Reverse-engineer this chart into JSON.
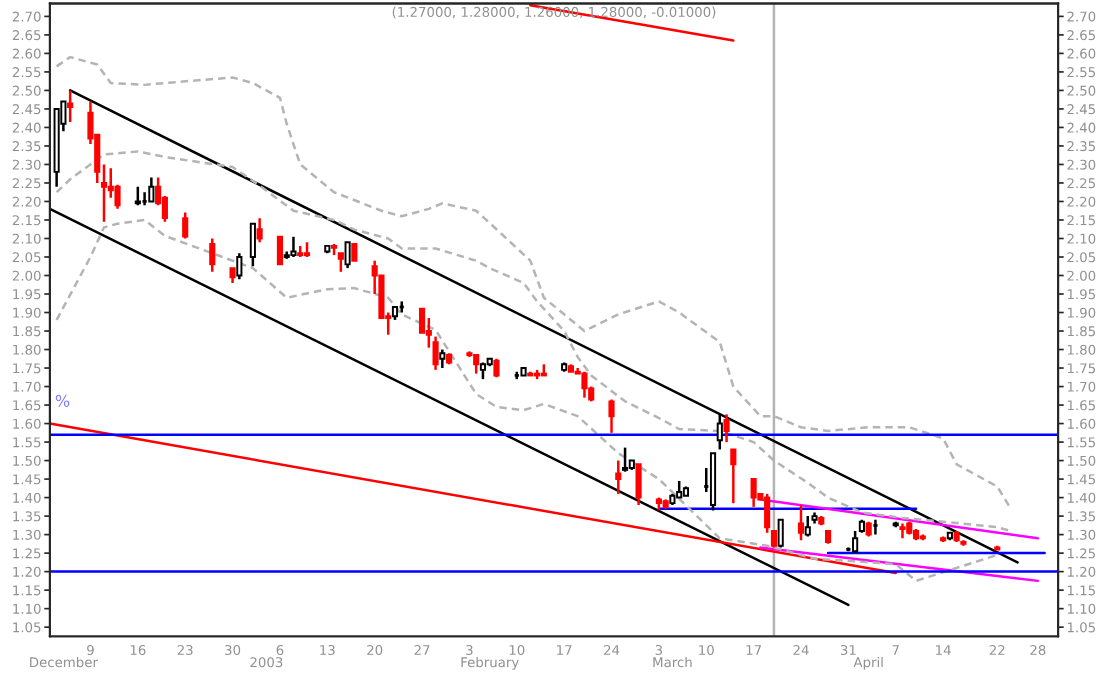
{
  "chart_data": {
    "type": "candlestick",
    "title": "(1.27000, 1.28000, 1.26000, 1.28000, -0.01000)",
    "x": [
      "2002-12-04",
      "2002-12-05",
      "2002-12-06",
      "2002-12-09",
      "2002-12-10",
      "2002-12-11",
      "2002-12-12",
      "2002-12-13",
      "2002-12-16",
      "2002-12-17",
      "2002-12-18",
      "2002-12-19",
      "2002-12-20",
      "2002-12-23",
      "2002-12-27",
      "2002-12-30",
      "2002-12-31",
      "2003-01-02",
      "2003-01-03",
      "2003-01-06",
      "2003-01-07",
      "2003-01-08",
      "2003-01-09",
      "2003-01-10",
      "2003-01-13",
      "2003-01-14",
      "2003-01-15",
      "2003-01-16",
      "2003-01-17",
      "2003-01-20",
      "2003-01-21",
      "2003-01-22",
      "2003-01-23",
      "2003-01-24",
      "2003-01-27",
      "2003-01-28",
      "2003-01-29",
      "2003-01-30",
      "2003-01-31",
      "2003-02-03",
      "2003-02-04",
      "2003-02-05",
      "2003-02-06",
      "2003-02-07",
      "2003-02-10",
      "2003-02-11",
      "2003-02-12",
      "2003-02-13",
      "2003-02-14",
      "2003-02-17",
      "2003-02-18",
      "2003-02-19",
      "2003-02-20",
      "2003-02-21",
      "2003-02-24",
      "2003-02-25",
      "2003-02-26",
      "2003-02-27",
      "2003-02-28",
      "2003-03-03",
      "2003-03-04",
      "2003-03-05",
      "2003-03-06",
      "2003-03-07",
      "2003-03-10",
      "2003-03-11",
      "2003-03-12",
      "2003-03-13",
      "2003-03-14",
      "2003-03-17",
      "2003-03-18",
      "2003-03-19",
      "2003-03-20",
      "2003-03-21",
      "2003-03-24",
      "2003-03-25",
      "2003-03-26",
      "2003-03-27",
      "2003-03-28",
      "2003-03-31",
      "2003-04-01",
      "2003-04-02",
      "2003-04-03",
      "2003-04-04",
      "2003-04-07",
      "2003-04-08",
      "2003-04-09",
      "2003-04-10",
      "2003-04-11",
      "2003-04-14",
      "2003-04-15",
      "2003-04-16",
      "2003-04-17",
      "2003-04-22"
    ],
    "ohlc": [
      [
        2.28,
        2.45,
        2.24,
        2.45
      ],
      [
        2.41,
        2.47,
        2.39,
        2.47
      ],
      [
        2.465,
        2.5,
        2.415,
        2.455
      ],
      [
        2.44,
        2.47,
        2.355,
        2.37
      ],
      [
        2.38,
        2.38,
        2.25,
        2.28
      ],
      [
        2.25,
        2.3,
        2.145,
        2.24
      ],
      [
        2.24,
        2.29,
        2.21,
        2.23
      ],
      [
        2.24,
        2.245,
        2.18,
        2.19
      ],
      [
        2.195,
        2.24,
        2.19,
        2.2
      ],
      [
        2.2,
        2.225,
        2.19,
        2.2
      ],
      [
        2.2,
        2.265,
        2.2,
        2.24
      ],
      [
        2.24,
        2.265,
        2.19,
        2.195
      ],
      [
        2.21,
        2.215,
        2.145,
        2.155
      ],
      [
        2.155,
        2.17,
        2.1,
        2.105
      ],
      [
        2.085,
        2.1,
        2.01,
        2.03
      ],
      [
        2.02,
        2.02,
        1.98,
        1.995
      ],
      [
        2.0,
        2.06,
        1.99,
        2.05
      ],
      [
        2.05,
        2.14,
        2.025,
        2.14
      ],
      [
        2.125,
        2.155,
        2.09,
        2.1
      ],
      [
        2.105,
        2.105,
        2.03,
        2.03
      ],
      [
        2.05,
        2.065,
        2.045,
        2.055
      ],
      [
        2.055,
        2.105,
        2.05,
        2.065
      ],
      [
        2.06,
        2.08,
        2.05,
        2.055
      ],
      [
        2.06,
        2.09,
        2.05,
        2.055
      ],
      [
        2.065,
        2.08,
        2.06,
        2.08
      ],
      [
        2.08,
        2.085,
        2.055,
        2.075
      ],
      [
        2.06,
        2.06,
        2.01,
        2.045
      ],
      [
        2.03,
        2.09,
        2.02,
        2.09
      ],
      [
        2.085,
        2.085,
        2.04,
        2.04
      ],
      [
        2.025,
        2.04,
        1.95,
        2.0
      ],
      [
        2.0,
        2.0,
        1.885,
        1.885
      ],
      [
        1.89,
        1.9,
        1.84,
        1.885
      ],
      [
        1.89,
        1.915,
        1.88,
        1.915
      ],
      [
        1.915,
        1.93,
        1.9,
        1.915
      ],
      [
        1.91,
        1.91,
        1.845,
        1.845
      ],
      [
        1.85,
        1.885,
        1.805,
        1.84
      ],
      [
        1.82,
        1.835,
        1.745,
        1.76
      ],
      [
        1.775,
        1.8,
        1.75,
        1.79
      ],
      [
        1.785,
        1.79,
        1.76,
        1.765
      ],
      [
        1.79,
        1.795,
        1.78,
        1.785
      ],
      [
        1.785,
        1.785,
        1.735,
        1.76
      ],
      [
        1.745,
        1.765,
        1.72,
        1.76
      ],
      [
        1.76,
        1.775,
        1.755,
        1.775
      ],
      [
        1.77,
        1.775,
        1.725,
        1.73
      ],
      [
        1.73,
        1.74,
        1.72,
        1.73
      ],
      [
        1.73,
        1.75,
        1.73,
        1.75
      ],
      [
        1.735,
        1.74,
        1.73,
        1.73
      ],
      [
        1.735,
        1.745,
        1.72,
        1.73
      ],
      [
        1.735,
        1.76,
        1.73,
        1.73
      ],
      [
        1.745,
        1.765,
        1.74,
        1.76
      ],
      [
        1.755,
        1.76,
        1.74,
        1.74
      ],
      [
        1.74,
        1.75,
        1.735,
        1.735
      ],
      [
        1.735,
        1.74,
        1.67,
        1.695
      ],
      [
        1.695,
        1.7,
        1.66,
        1.665
      ],
      [
        1.66,
        1.665,
        1.575,
        1.62
      ],
      [
        1.465,
        1.5,
        1.41,
        1.45
      ],
      [
        1.475,
        1.535,
        1.47,
        1.48
      ],
      [
        1.48,
        1.5,
        1.475,
        1.5
      ],
      [
        1.49,
        1.49,
        1.38,
        1.4
      ],
      [
        1.395,
        1.4,
        1.365,
        1.385
      ],
      [
        1.39,
        1.395,
        1.37,
        1.375
      ],
      [
        1.385,
        1.41,
        1.38,
        1.405
      ],
      [
        1.4,
        1.445,
        1.4,
        1.415
      ],
      [
        1.405,
        1.43,
        1.405,
        1.425
      ],
      [
        1.43,
        1.48,
        1.415,
        1.43
      ],
      [
        1.38,
        1.52,
        1.365,
        1.52
      ],
      [
        1.555,
        1.625,
        1.53,
        1.6
      ],
      [
        1.61,
        1.625,
        1.55,
        1.58
      ],
      [
        1.53,
        1.53,
        1.385,
        1.49
      ],
      [
        1.45,
        1.45,
        1.375,
        1.4
      ],
      [
        1.41,
        1.41,
        1.395,
        1.395
      ],
      [
        1.4,
        1.41,
        1.305,
        1.32
      ],
      [
        1.31,
        1.31,
        1.265,
        1.27
      ],
      [
        1.27,
        1.34,
        1.265,
        1.34
      ],
      [
        1.33,
        1.38,
        1.285,
        1.305
      ],
      [
        1.3,
        1.35,
        1.295,
        1.32
      ],
      [
        1.34,
        1.36,
        1.33,
        1.35
      ],
      [
        1.345,
        1.35,
        1.325,
        1.33
      ],
      [
        1.31,
        1.31,
        1.275,
        1.28
      ],
      [
        1.26,
        1.265,
        1.255,
        1.26
      ],
      [
        1.255,
        1.31,
        1.25,
        1.29
      ],
      [
        1.31,
        1.34,
        1.305,
        1.335
      ],
      [
        1.33,
        1.335,
        1.295,
        1.3
      ],
      [
        1.325,
        1.34,
        1.3,
        1.325
      ],
      [
        1.325,
        1.335,
        1.32,
        1.33
      ],
      [
        1.32,
        1.33,
        1.29,
        1.315
      ],
      [
        1.33,
        1.335,
        1.3,
        1.305
      ],
      [
        1.31,
        1.315,
        1.285,
        1.29
      ],
      [
        1.295,
        1.3,
        1.285,
        1.29
      ],
      [
        1.29,
        1.295,
        1.28,
        1.285
      ],
      [
        1.29,
        1.305,
        1.285,
        1.305
      ],
      [
        1.305,
        1.31,
        1.28,
        1.285
      ],
      [
        1.28,
        1.285,
        1.27,
        1.275
      ],
      [
        1.265,
        1.27,
        1.26,
        1.26
      ]
    ],
    "series": [
      {
        "type": "line",
        "color": "#000000",
        "line_style": "solid",
        "x": [
          "2002-12-06",
          "2003-04-25"
        ],
        "values": [
          2.5,
          1.225
        ]
      },
      {
        "type": "line",
        "color": "#000000",
        "line_style": "solid",
        "x": [
          "2002-12-03",
          "2003-03-31"
        ],
        "values": [
          2.18,
          1.11
        ]
      },
      {
        "type": "line",
        "color": "#ff0000",
        "line_style": "solid",
        "x": [
          "2002-12-03",
          "2003-04-07"
        ],
        "values": [
          1.6,
          1.196
        ]
      },
      {
        "type": "line",
        "color": "#ff0000",
        "line_style": "solid",
        "x": [
          "2003-02-12",
          "2003-03-14"
        ],
        "values": [
          2.73,
          2.635
        ]
      },
      {
        "type": "line",
        "color": "#0000ff",
        "line_style": "solid",
        "x": [
          "2003-03-03",
          "2003-04-10"
        ],
        "values": [
          1.37,
          1.37
        ]
      },
      {
        "type": "line",
        "color": "#0000ff",
        "line_style": "solid",
        "x": [
          "2003-03-28",
          "2003-04-29"
        ],
        "values": [
          1.25,
          1.25
        ]
      },
      {
        "type": "line",
        "color": "#ff00ff",
        "line_style": "solid",
        "x": [
          "2003-03-18",
          "2003-04-28"
        ],
        "values": [
          1.395,
          1.29
        ]
      },
      {
        "type": "line",
        "color": "#ff00ff",
        "line_style": "solid",
        "x": [
          "2003-03-18",
          "2003-04-28"
        ],
        "values": [
          1.265,
          1.175
        ]
      },
      {
        "type": "line",
        "color": "#b4b4b4",
        "line_style": "dashed",
        "x": [
          "2002-12-04",
          "2002-12-06",
          "2002-12-10",
          "2002-12-12",
          "2002-12-17",
          "2002-12-20",
          "2002-12-30",
          "2003-01-02",
          "2003-01-06",
          "2003-01-07",
          "2003-01-09",
          "2003-01-14",
          "2003-01-21",
          "2003-01-24",
          "2003-01-28",
          "2003-01-30",
          "2003-02-04",
          "2003-02-07",
          "2003-02-12",
          "2003-02-14",
          "2003-02-20",
          "2003-02-25",
          "2003-03-03",
          "2003-03-06",
          "2003-03-12",
          "2003-03-14",
          "2003-03-18",
          "2003-03-20",
          "2003-03-24",
          "2003-03-28",
          "2003-04-03",
          "2003-04-09",
          "2003-04-14",
          "2003-04-16",
          "2003-04-22",
          "2003-04-24"
        ],
        "values": [
          2.565,
          2.59,
          2.57,
          2.52,
          2.515,
          2.52,
          2.535,
          2.52,
          2.48,
          2.41,
          2.3,
          2.225,
          2.175,
          2.16,
          2.18,
          2.195,
          2.175,
          2.125,
          2.04,
          1.94,
          1.85,
          1.895,
          1.93,
          1.9,
          1.82,
          1.7,
          1.62,
          1.62,
          1.59,
          1.58,
          1.59,
          1.59,
          1.56,
          1.49,
          1.43,
          1.37
        ]
      },
      {
        "type": "line",
        "color": "#b4b4b4",
        "line_style": "dashed",
        "x": [
          "2002-12-04",
          "2002-12-06",
          "2002-12-11",
          "2002-12-16",
          "2002-12-20",
          "2002-12-30",
          "2003-01-03",
          "2003-01-08",
          "2003-01-14",
          "2003-01-17",
          "2003-01-22",
          "2003-01-24",
          "2003-01-29",
          "2003-02-04",
          "2003-02-06",
          "2003-02-11",
          "2003-02-13",
          "2003-02-17",
          "2003-02-19",
          "2003-02-21",
          "2003-02-26",
          "2003-03-03",
          "2003-03-06",
          "2003-03-12",
          "2003-03-17",
          "2003-03-20",
          "2003-03-25",
          "2003-03-28",
          "2003-04-02",
          "2003-04-08",
          "2003-04-14",
          "2003-04-22",
          "2003-04-24"
        ],
        "values": [
          2.225,
          2.26,
          2.327,
          2.335,
          2.32,
          2.293,
          2.243,
          2.175,
          2.15,
          2.124,
          2.1,
          2.073,
          2.073,
          2.04,
          2.02,
          1.98,
          1.93,
          1.85,
          1.78,
          1.73,
          1.66,
          1.615,
          1.585,
          1.58,
          1.55,
          1.5,
          1.44,
          1.4,
          1.36,
          1.345,
          1.335,
          1.32,
          1.31
        ]
      },
      {
        "type": "line",
        "color": "#b4b4b4",
        "line_style": "dashed",
        "x": [
          "2002-12-04",
          "2002-12-09",
          "2002-12-11",
          "2002-12-13",
          "2002-12-17",
          "2002-12-20",
          "2003-01-02",
          "2003-01-07",
          "2003-01-13",
          "2003-01-17",
          "2003-01-22",
          "2003-01-24",
          "2003-01-29",
          "2003-02-04",
          "2003-02-07",
          "2003-02-11",
          "2003-02-14",
          "2003-02-19",
          "2003-02-25",
          "2003-03-03",
          "2003-03-12",
          "2003-03-19",
          "2003-03-26",
          "2003-04-01",
          "2003-04-07",
          "2003-04-10",
          "2003-04-16",
          "2003-04-22"
        ],
        "values": [
          1.88,
          2.05,
          2.13,
          2.14,
          2.15,
          2.107,
          2.02,
          1.94,
          1.963,
          1.966,
          1.94,
          1.895,
          1.853,
          1.68,
          1.645,
          1.636,
          1.653,
          1.62,
          1.52,
          1.45,
          1.29,
          1.27,
          1.235,
          1.228,
          1.22,
          1.175,
          1.21,
          1.245
        ]
      }
    ],
    "ref_lines": [
      {
        "axis": "y",
        "value": 1.57,
        "color": "#0000ff"
      },
      {
        "axis": "y",
        "value": 1.2,
        "color": "#0000ff"
      },
      {
        "axis": "x",
        "value": "2003-03-20",
        "color": "#b4b4b4"
      }
    ],
    "annotations": [
      "%"
    ],
    "grid": false,
    "xlim": [
      "2002-12-03",
      "2003-05-01"
    ],
    "xticks": [
      {
        "value": "2002-12-09",
        "label": "9"
      },
      {
        "value": "2002-12-16",
        "label": "16"
      },
      {
        "value": "2002-12-23",
        "label": "23"
      },
      {
        "value": "2002-12-30",
        "label": "30"
      },
      {
        "value": "2003-01-06",
        "label": "6"
      },
      {
        "value": "2003-01-13",
        "label": "13"
      },
      {
        "value": "2003-01-20",
        "label": "20"
      },
      {
        "value": "2003-01-27",
        "label": "27"
      },
      {
        "value": "2003-02-03",
        "label": "3"
      },
      {
        "value": "2003-02-10",
        "label": "10"
      },
      {
        "value": "2003-02-17",
        "label": "17"
      },
      {
        "value": "2003-02-24",
        "label": "24"
      },
      {
        "value": "2003-03-03",
        "label": "3"
      },
      {
        "value": "2003-03-10",
        "label": "10"
      },
      {
        "value": "2003-03-17",
        "label": "17"
      },
      {
        "value": "2003-03-24",
        "label": "24"
      },
      {
        "value": "2003-03-31",
        "label": "31"
      },
      {
        "value": "2003-04-07",
        "label": "7"
      },
      {
        "value": "2003-04-14",
        "label": "14"
      },
      {
        "value": "2003-04-22",
        "label": "22"
      },
      {
        "value": "2003-04-28",
        "label": "28"
      }
    ],
    "x2lim": [
      "2002-12-03",
      "2003-05-01"
    ],
    "x2ticks": [
      {
        "value": "2002-12-05",
        "label": "December"
      },
      {
        "value": "2003-01-04",
        "label": "2003"
      },
      {
        "value": "2003-02-06",
        "label": "February"
      },
      {
        "value": "2003-03-05",
        "label": "March"
      },
      {
        "value": "2003-04-03",
        "label": "April"
      }
    ],
    "ylim": [
      1.025,
      2.735
    ],
    "yticks": [
      1.05,
      {
        "value": 1.1,
        "label": "1.10"
      },
      1.15,
      {
        "value": 1.2,
        "label": "1.20"
      },
      1.25,
      {
        "value": 1.3,
        "label": "1.30"
      },
      1.35,
      {
        "value": 1.4,
        "label": "1.40"
      },
      1.45,
      {
        "value": 1.5,
        "label": "1.50"
      },
      1.55,
      {
        "value": 1.6,
        "label": "1.60"
      },
      1.65,
      {
        "value": 1.7,
        "label": "1.70"
      },
      1.75,
      {
        "value": 1.8,
        "label": "1.80"
      },
      1.85,
      {
        "value": 1.9,
        "label": "1.90"
      },
      1.95,
      {
        "value": 2.0,
        "label": "2.00"
      },
      2.05,
      {
        "value": 2.1,
        "label": "2.10"
      },
      2.15,
      {
        "value": 2.2,
        "label": "2.20"
      },
      2.25,
      {
        "value": 2.3,
        "label": "2.30"
      },
      2.35,
      {
        "value": 2.4,
        "label": "2.40"
      },
      2.45,
      {
        "value": 2.5,
        "label": "2.50"
      },
      2.55,
      {
        "value": 2.6,
        "label": "2.60"
      },
      2.65,
      {
        "value": 2.7,
        "label": "2.70"
      }
    ],
    "y2lim": [
      1.025,
      2.735
    ],
    "y2ticks": [
      1.05,
      {
        "value": 1.1,
        "label": "1.10"
      },
      1.15,
      {
        "value": 1.2,
        "label": "1.20"
      },
      1.25,
      {
        "value": 1.3,
        "label": "1.30"
      },
      1.35,
      {
        "value": 1.4,
        "label": "1.40"
      },
      1.45,
      {
        "value": 1.5,
        "label": "1.50"
      },
      1.55,
      {
        "value": 1.6,
        "label": "1.60"
      },
      1.65,
      {
        "value": 1.7,
        "label": "1.70"
      },
      1.75,
      {
        "value": 1.8,
        "label": "1.80"
      },
      1.85,
      {
        "value": 1.9,
        "label": "1.90"
      },
      1.95,
      {
        "value": 2.0,
        "label": "2.00"
      },
      2.05,
      {
        "value": 2.1,
        "label": "2.10"
      },
      2.15,
      {
        "value": 2.2,
        "label": "2.20"
      },
      2.25,
      {
        "value": 2.3,
        "label": "2.30"
      },
      2.35,
      {
        "value": 2.4,
        "label": "2.40"
      },
      2.45,
      {
        "value": 2.5,
        "label": "2.50"
      },
      2.55,
      {
        "value": 2.6,
        "label": "2.60"
      },
      2.65,
      {
        "value": 2.7,
        "label": "2.70"
      }
    ]
  }
}
